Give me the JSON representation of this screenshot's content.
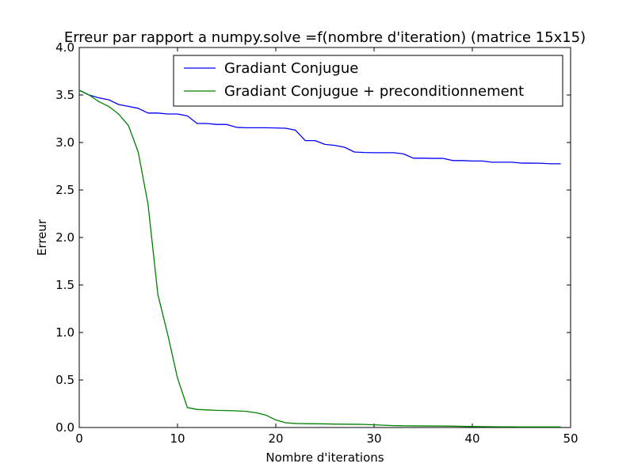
{
  "chart_data": {
    "type": "line",
    "title": "Erreur par rapport a numpy.solve =f(nombre d'iteration) (matrice 15x15)",
    "xlabel": "Nombre d'iterations",
    "ylabel": "Erreur",
    "xlim": [
      0,
      50
    ],
    "ylim": [
      0,
      4.0
    ],
    "xticks": [
      0,
      10,
      20,
      30,
      40,
      50
    ],
    "yticks": [
      0.0,
      0.5,
      1.0,
      1.5,
      2.0,
      2.5,
      3.0,
      3.5,
      4.0
    ],
    "xtick_labels": [
      "0",
      "10",
      "20",
      "30",
      "40",
      "50"
    ],
    "ytick_labels": [
      "0.0",
      "0.5",
      "1.0",
      "1.5",
      "2.0",
      "2.5",
      "3.0",
      "3.5",
      "4.0"
    ],
    "grid": false,
    "legend_position": "top-right",
    "x": [
      0,
      1,
      2,
      3,
      4,
      5,
      6,
      7,
      8,
      9,
      10,
      11,
      12,
      13,
      14,
      15,
      16,
      17,
      18,
      19,
      20,
      21,
      22,
      23,
      24,
      25,
      26,
      27,
      28,
      29,
      30,
      31,
      32,
      33,
      34,
      35,
      36,
      37,
      38,
      39,
      40,
      41,
      42,
      43,
      44,
      45,
      46,
      47,
      48,
      49
    ],
    "series": [
      {
        "name": "Gradiant Conjugue",
        "color": "#0000ff",
        "values": [
          3.55,
          3.5,
          3.47,
          3.45,
          3.4,
          3.38,
          3.36,
          3.31,
          3.31,
          3.3,
          3.3,
          3.28,
          3.2,
          3.2,
          3.19,
          3.19,
          3.16,
          3.155,
          3.155,
          3.155,
          3.153,
          3.15,
          3.13,
          3.02,
          3.02,
          2.98,
          2.97,
          2.95,
          2.9,
          2.895,
          2.893,
          2.893,
          2.893,
          2.88,
          2.835,
          2.835,
          2.833,
          2.833,
          2.81,
          2.81,
          2.805,
          2.805,
          2.793,
          2.793,
          2.793,
          2.783,
          2.783,
          2.781,
          2.776,
          2.776
        ]
      },
      {
        "name": "Gradiant Conjugue + preconditionnement",
        "color": "#008000",
        "values": [
          3.55,
          3.5,
          3.43,
          3.38,
          3.3,
          3.18,
          2.9,
          2.35,
          1.4,
          0.98,
          0.52,
          0.21,
          0.19,
          0.185,
          0.18,
          0.178,
          0.175,
          0.17,
          0.155,
          0.13,
          0.08,
          0.05,
          0.042,
          0.04,
          0.039,
          0.038,
          0.036,
          0.035,
          0.034,
          0.032,
          0.028,
          0.024,
          0.02,
          0.018,
          0.017,
          0.016,
          0.016,
          0.015,
          0.014,
          0.012,
          0.01,
          0.009,
          0.008,
          0.007,
          0.007,
          0.006,
          0.006,
          0.006,
          0.006,
          0.006
        ]
      }
    ]
  }
}
